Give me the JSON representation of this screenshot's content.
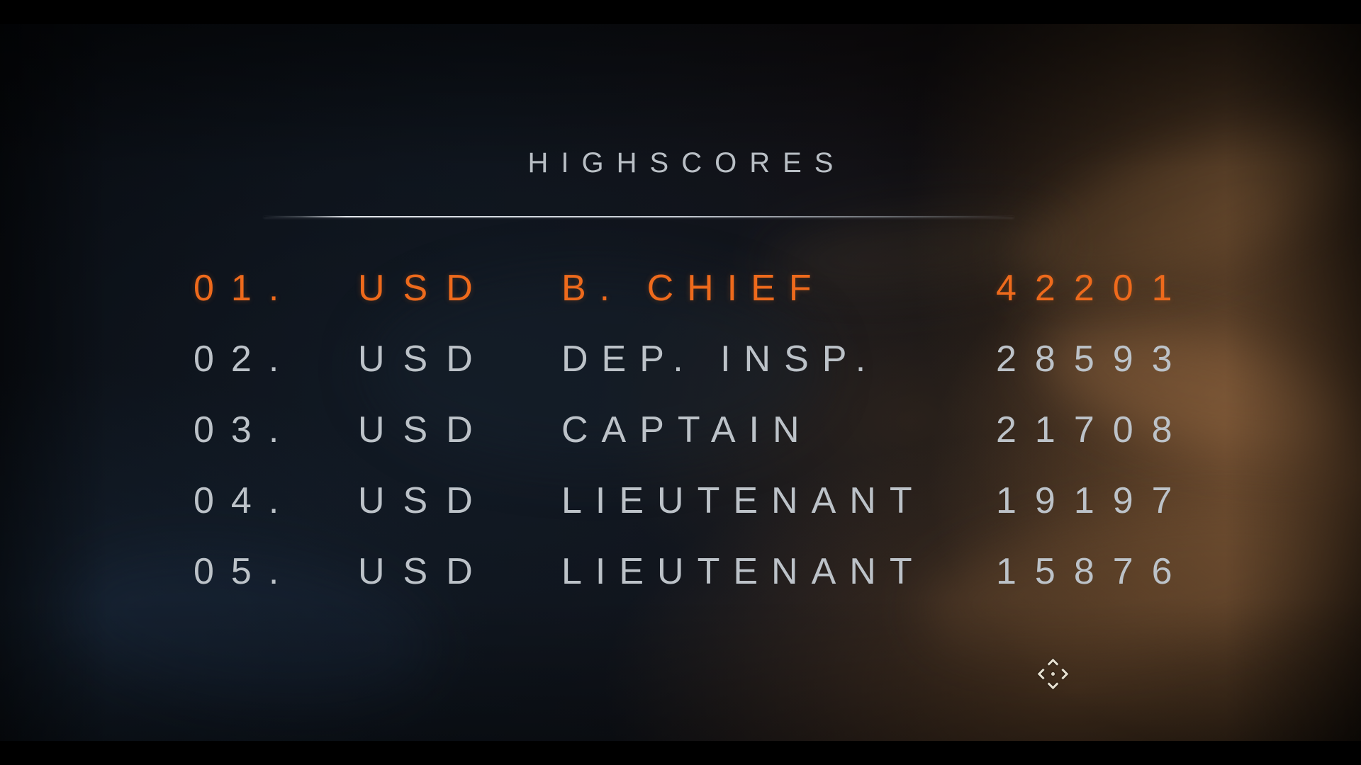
{
  "colors": {
    "highlight_orange": "#ee6a1c",
    "text_gray": "#bcc2c8",
    "divider_gray": "#d6dce4"
  },
  "highscores": {
    "heading": "HIGHSCORES",
    "rows": [
      {
        "rank": "01.",
        "tag": "USD",
        "name": "B. CHIEF",
        "score": "42201",
        "highlighted": true
      },
      {
        "rank": "02.",
        "tag": "USD",
        "name": "DEP. INSP.",
        "score": "28593",
        "highlighted": false
      },
      {
        "rank": "03.",
        "tag": "USD",
        "name": "CAPTAIN",
        "score": "21708",
        "highlighted": false
      },
      {
        "rank": "04.",
        "tag": "USD",
        "name": "LIEUTENANT",
        "score": "19197",
        "highlighted": false
      },
      {
        "rank": "05.",
        "tag": "USD",
        "name": "LIEUTENANT",
        "score": "15876",
        "highlighted": false
      }
    ]
  },
  "cursor": {
    "icon": "move-cursor"
  }
}
